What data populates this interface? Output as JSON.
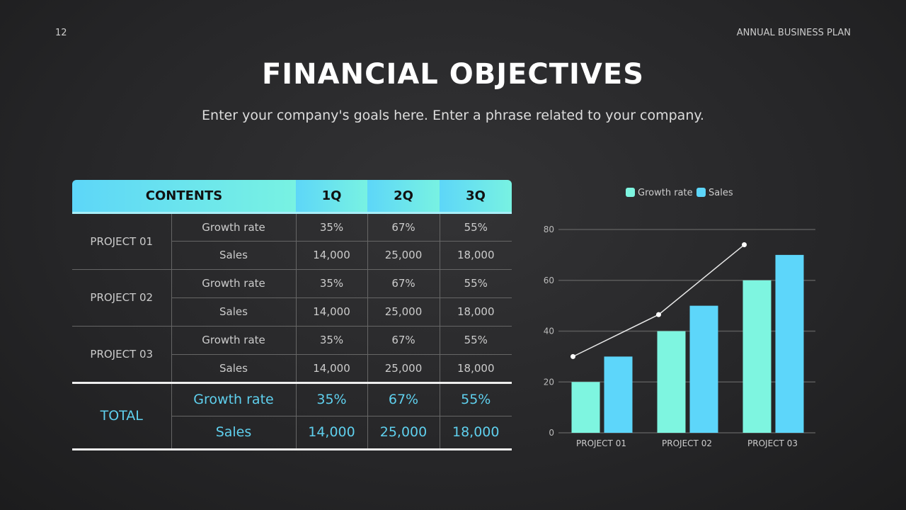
{
  "page_number": "12",
  "doc_title": "ANNUAL BUSINESS PLAN",
  "title": "FINANCIAL OBJECTIVES",
  "subtitle": "Enter your company's goals here. Enter a phrase related to your company.",
  "table": {
    "headers": [
      "CONTENTS",
      "1Q",
      "2Q",
      "3Q"
    ],
    "projects": [
      {
        "name": "PROJECT 01",
        "rows": [
          [
            "Growth rate",
            "35%",
            "67%",
            "55%"
          ],
          [
            "Sales",
            "14,000",
            "25,000",
            "18,000"
          ]
        ]
      },
      {
        "name": "PROJECT 02",
        "rows": [
          [
            "Growth rate",
            "35%",
            "67%",
            "55%"
          ],
          [
            "Sales",
            "14,000",
            "25,000",
            "18,000"
          ]
        ]
      },
      {
        "name": "PROJECT 03",
        "rows": [
          [
            "Growth rate",
            "35%",
            "67%",
            "55%"
          ],
          [
            "Sales",
            "14,000",
            "25,000",
            "18,000"
          ]
        ]
      }
    ],
    "total": {
      "name": "TOTAL",
      "rows": [
        [
          "Growth rate",
          "35%",
          "67%",
          "55%"
        ],
        [
          "Sales",
          "14,000",
          "25,000",
          "18,000"
        ]
      ]
    }
  },
  "chart_data": {
    "type": "bar",
    "categories": [
      "PROJECT 01",
      "PROJECT 02",
      "PROJECT 03"
    ],
    "series": [
      {
        "name": "Growth rate",
        "values": [
          20,
          40,
          60
        ],
        "color": "#7ef5e0"
      },
      {
        "name": "Sales",
        "values": [
          30,
          50,
          70
        ],
        "color": "#5dd6fa"
      }
    ],
    "line": {
      "values": [
        30,
        46.5,
        74
      ],
      "color": "#e8e8e8"
    },
    "yticks": [
      0,
      20,
      40,
      60,
      80
    ],
    "ylim": [
      0,
      80
    ],
    "legend": "top-center",
    "grid": true
  }
}
